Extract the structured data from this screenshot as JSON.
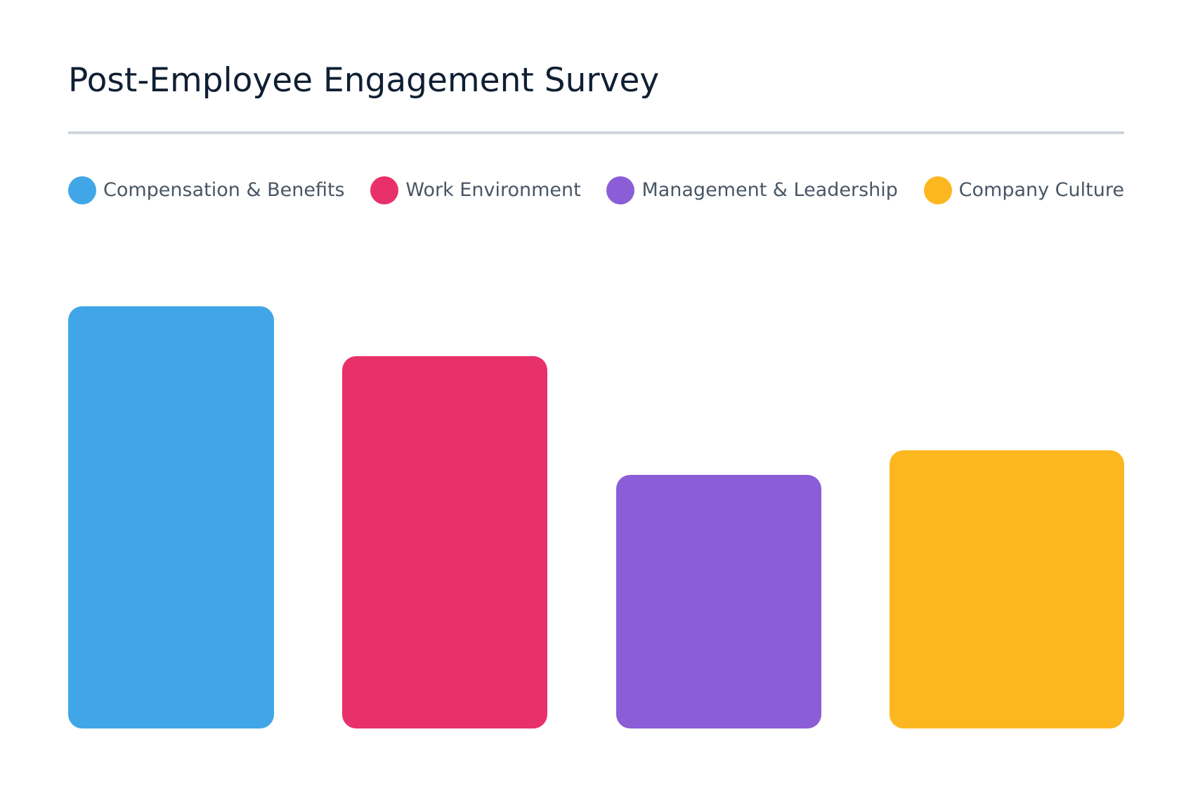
{
  "chart_data": {
    "type": "bar",
    "title": "Post-Employee Engagement Survey",
    "categories": [
      "Compensation & Benefits",
      "Work Environment",
      "Management & Leadership",
      "Company Culture"
    ],
    "values": [
      85,
      75,
      51,
      56
    ],
    "colors": [
      "#41a6e7",
      "#e8316a",
      "#8b5dd6",
      "#fcb720"
    ],
    "ylim": [
      0,
      100
    ],
    "xlabel": "",
    "ylabel": "",
    "grid": false,
    "legend": "top"
  }
}
